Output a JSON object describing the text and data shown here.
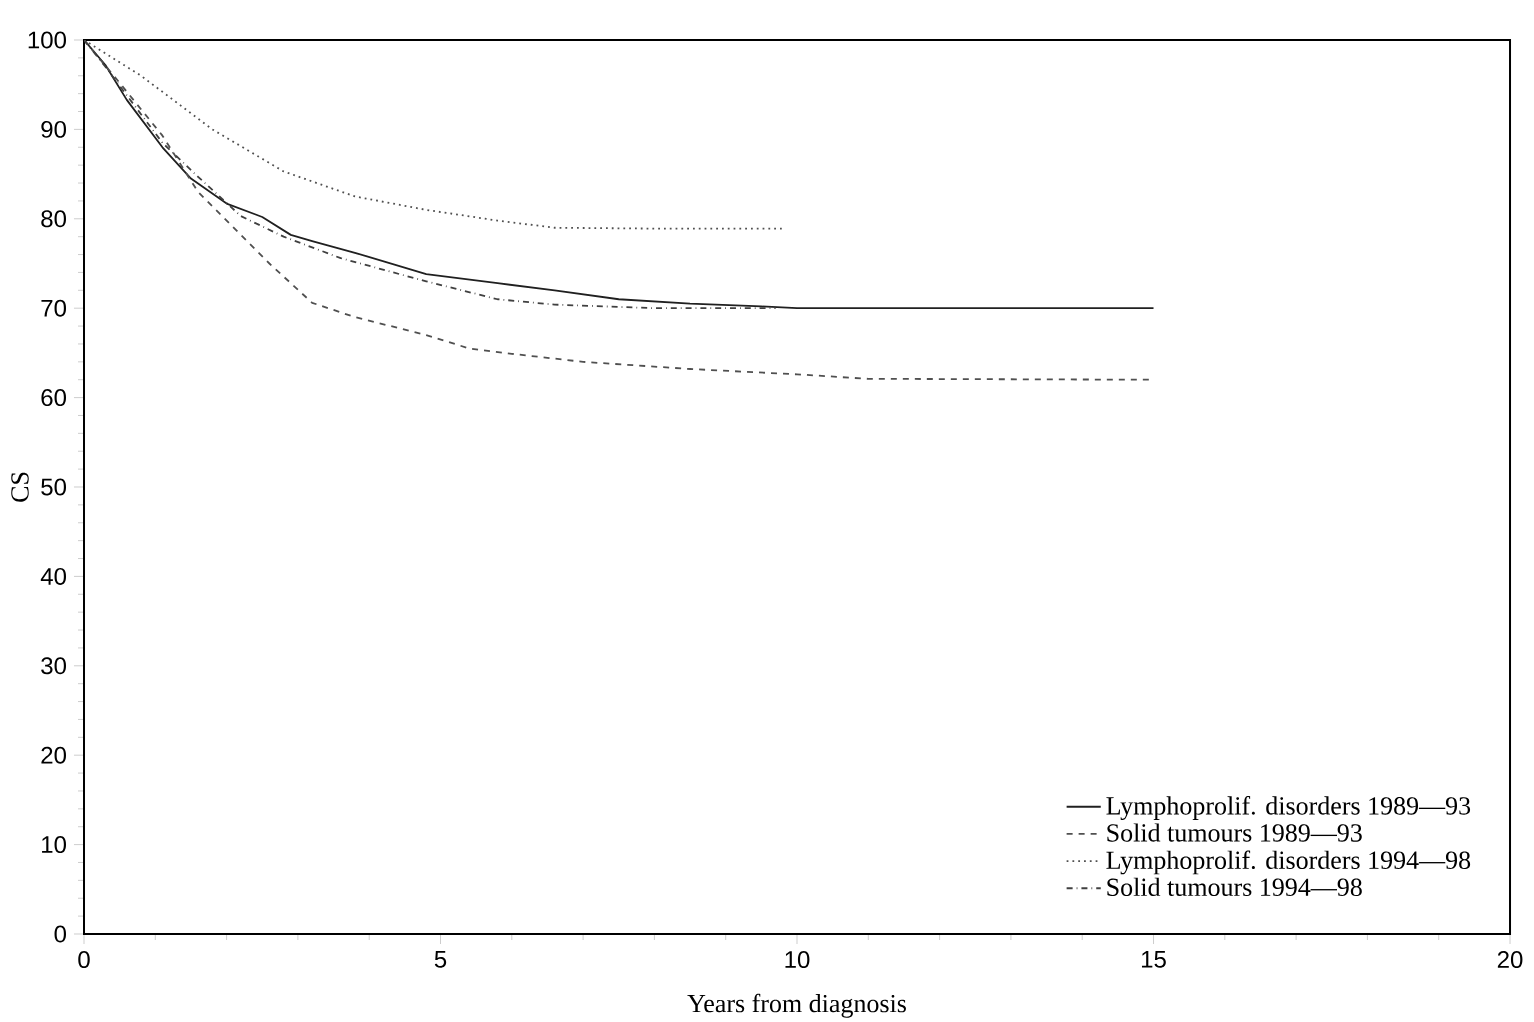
{
  "chart_data": {
    "type": "line",
    "xlabel": "Years from diagnosis",
    "ylabel": "CS",
    "xlim": [
      0,
      20
    ],
    "ylim": [
      0,
      100
    ],
    "xticks": [
      0,
      5,
      10,
      15,
      20
    ],
    "yticks": [
      0,
      10,
      20,
      30,
      40,
      50,
      60,
      70,
      80,
      90,
      100
    ],
    "grid": false,
    "legend": "bottom right",
    "marker": "none",
    "series": [
      {
        "name": "Lymphoprolif. disorders 1989—93",
        "color": "#202020",
        "line_style": "solid",
        "x": [
          0,
          0.3,
          0.6,
          1.1,
          1.5,
          2,
          2.5,
          2.9,
          3.2,
          3.8,
          4.8,
          5.8,
          6.6,
          7.5,
          8.5,
          9.5,
          10,
          15
        ],
        "values": [
          100,
          97.2,
          93.3,
          88,
          84.5,
          81.7,
          80.2,
          78.2,
          77.5,
          76.2,
          73.8,
          72.8,
          72,
          71,
          70.5,
          70.2,
          70,
          70
        ]
      },
      {
        "name": "Solid tumours 1989—93",
        "color": "#505050",
        "line_style": "dashed",
        "x": [
          0,
          0.5,
          1.1,
          1.6,
          2.2,
          2.6,
          3.2,
          3.8,
          4.8,
          5.4,
          6,
          7,
          8.5,
          10,
          11,
          15
        ],
        "values": [
          100,
          95.2,
          89.3,
          83,
          78.2,
          75,
          70.6,
          69,
          67,
          65.5,
          64.9,
          64,
          63.2,
          62.6,
          62.1,
          62
        ]
      },
      {
        "name": "Lymphoprolif. disorders 1994—98",
        "color": "#505050",
        "line_style": "dotted",
        "x": [
          0,
          0.8,
          1.8,
          2.8,
          3.8,
          4.8,
          5.8,
          6.6,
          8,
          9.8
        ],
        "values": [
          100,
          96,
          90,
          85.3,
          82.5,
          81,
          79.8,
          79,
          78.9,
          78.9
        ]
      },
      {
        "name": "Solid tumours 1994—98",
        "color": "#404040",
        "line_style": "dashdot",
        "x": [
          0,
          0.3,
          1.1,
          1.6,
          2.2,
          2.8,
          3.6,
          4.8,
          5.8,
          6.6,
          8,
          9.7
        ],
        "values": [
          100,
          97,
          88.5,
          84.7,
          80.3,
          78,
          75.6,
          73,
          71,
          70.4,
          70,
          70
        ]
      }
    ]
  }
}
